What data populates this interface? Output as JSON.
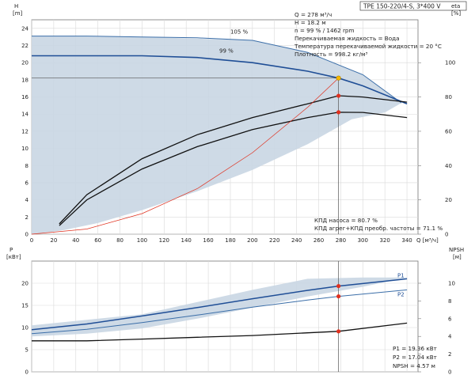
{
  "chart_data": [
    {
      "type": "line",
      "title": "TPE 150-220/4-S, 3*400 V",
      "xlabel": "Q [м³/ч]",
      "x_ticks": [
        0,
        20,
        40,
        60,
        80,
        100,
        120,
        140,
        160,
        180,
        200,
        220,
        240,
        260,
        280,
        300,
        320,
        340
      ],
      "xlim": [
        0,
        350
      ],
      "y_axis_left": {
        "label_top": "H",
        "label_bottom": "[m]",
        "ticks": [
          0,
          2,
          4,
          6,
          8,
          10,
          12,
          14,
          16,
          18,
          20,
          22,
          24
        ],
        "ylim": [
          0,
          25
        ]
      },
      "y_axis_right": {
        "label_top": "eta",
        "label_bottom": "[%]",
        "ticks": [
          0,
          20,
          40,
          60,
          80,
          100
        ],
        "ylim": [
          0,
          125
        ]
      },
      "curve_labels": [
        "105 %",
        "99 %"
      ],
      "info_box": [
        "Q = 278 м³/ч",
        "H = 18.2 м",
        "n = 99 % / 1462 rpm",
        "Перекачиваемая жидкость = Вода",
        "Температура перекачиваемой жидкости = 20 °C",
        "Плотность = 998.2 кг/м³"
      ],
      "efficiency_note": [
        "КПД насоса = 80.7 %",
        "КПД агрег+КПД преобр. частоты = 71.1 %"
      ],
      "duty_point": {
        "q": 278,
        "h": 18.2
      },
      "eff_points": [
        {
          "q": 278,
          "eta": 80.7
        },
        {
          "q": 278,
          "eta": 71.1
        }
      ],
      "series": [
        {
          "name": "105 %",
          "role": "H_max",
          "x": [
            0,
            50,
            100,
            150,
            200,
            250,
            300,
            335
          ],
          "y": [
            23.1,
            23.1,
            23.0,
            22.9,
            22.6,
            21.2,
            18.6,
            15.3
          ]
        },
        {
          "name": "99 %",
          "role": "H_operating",
          "x": [
            0,
            50,
            100,
            150,
            200,
            250,
            278,
            300,
            340
          ],
          "y": [
            20.8,
            20.8,
            20.8,
            20.6,
            20.0,
            19.0,
            18.2,
            17.3,
            15.2
          ]
        },
        {
          "role": "eta_pump",
          "x": [
            25,
            50,
            100,
            150,
            200,
            250,
            278,
            300,
            340
          ],
          "y": [
            6,
            23,
            44,
            58,
            68,
            76,
            80.7,
            80,
            77
          ]
        },
        {
          "role": "eta_total",
          "x": [
            25,
            50,
            100,
            150,
            200,
            250,
            278,
            300,
            340
          ],
          "y": [
            5,
            20,
            38,
            51,
            61,
            68,
            71.1,
            71,
            68
          ]
        },
        {
          "role": "system_curve",
          "x": [
            0,
            50,
            100,
            150,
            200,
            250,
            278
          ],
          "y": [
            0,
            0.6,
            2.4,
            5.3,
            9.5,
            14.8,
            18.2
          ]
        }
      ],
      "operating_range_envelope": {
        "x": [
          0,
          100,
          200,
          250,
          300,
          335,
          320,
          290,
          250,
          200,
          150,
          100,
          60,
          30,
          10,
          0
        ],
        "y": [
          23.1,
          23.0,
          22.6,
          21.2,
          18.6,
          15.3,
          14.2,
          13.4,
          10.5,
          7.5,
          5.0,
          2.8,
          1.3,
          0.5,
          0.1,
          0
        ]
      }
    },
    {
      "type": "line",
      "xlabel": "Q [м³/ч]",
      "x_ticks": [
        0,
        20,
        40,
        60,
        80,
        100,
        120,
        140,
        160,
        180,
        200,
        220,
        240,
        260,
        280,
        300,
        320,
        340
      ],
      "xlim": [
        0,
        350
      ],
      "y_axis_left": {
        "label_top": "P",
        "label_bottom": "[кВт]",
        "ticks": [
          0,
          5,
          10,
          15,
          20
        ],
        "ylim": [
          0,
          25
        ]
      },
      "y_axis_right": {
        "label_top": "NPSH",
        "label_bottom": "[м]",
        "ticks": [
          0,
          2,
          4,
          6,
          8,
          10
        ],
        "ylim": [
          0,
          12.5
        ]
      },
      "readout": [
        "P1 = 19.36 кВт",
        "P2 = 17.04 кВт",
        "NPSH = 4.57 м"
      ],
      "operating_points": [
        {
          "name": "P1",
          "q": 278,
          "p": 19.36
        },
        {
          "name": "P2",
          "q": 278,
          "p": 17.04
        },
        {
          "name": "NPSH",
          "q": 278,
          "npsh": 4.57
        }
      ],
      "series": [
        {
          "name": "P1",
          "x": [
            0,
            50,
            100,
            150,
            200,
            250,
            278,
            340
          ],
          "y": [
            9.5,
            10.8,
            12.6,
            14.5,
            16.5,
            18.4,
            19.36,
            21.0
          ]
        },
        {
          "name": "P2",
          "x": [
            0,
            50,
            100,
            150,
            200,
            250,
            278,
            340
          ],
          "y": [
            8.6,
            9.6,
            11.1,
            12.8,
            14.6,
            16.2,
            17.04,
            18.5
          ]
        },
        {
          "role": "NPSH",
          "axis": "right",
          "x": [
            0,
            50,
            100,
            150,
            200,
            250,
            278,
            340
          ],
          "y": [
            3.5,
            3.5,
            3.7,
            3.9,
            4.1,
            4.4,
            4.57,
            5.5
          ]
        }
      ],
      "envelope": {
        "x": [
          0,
          100,
          200,
          250,
          300,
          340,
          300,
          250,
          200,
          150,
          100,
          50,
          0
        ],
        "y": [
          10.5,
          13.0,
          18.5,
          21.0,
          21.3,
          21.3,
          19.2,
          17.0,
          14.5,
          12.0,
          9.8,
          8.6,
          8.0
        ]
      }
    }
  ]
}
